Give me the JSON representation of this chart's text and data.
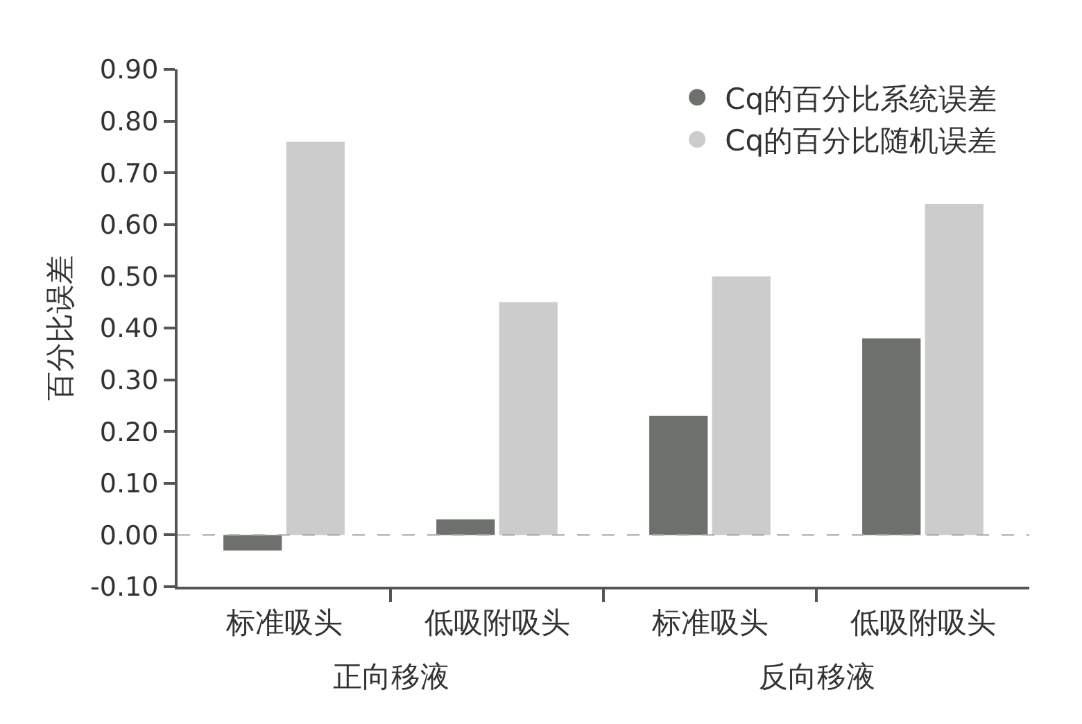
{
  "chart_data": {
    "type": "bar",
    "ylabel": "百分比误差",
    "categories": [
      "标准吸头",
      "低吸附吸头",
      "标准吸头",
      "低吸附吸头"
    ],
    "annotations": [
      "正向移液",
      "反向移液"
    ],
    "series": [
      {
        "name": "Cq的百分比系统误差",
        "color": "#6e706d",
        "values": [
          -0.03,
          0.03,
          0.23,
          0.38
        ]
      },
      {
        "name": "Cq的百分比随机误差",
        "color": "#cccccc",
        "values": [
          0.76,
          0.45,
          0.5,
          0.64
        ]
      }
    ],
    "ylim": [
      -0.1,
      0.9
    ],
    "yticks": [
      {
        "value": -0.1,
        "label": "-0.10"
      },
      {
        "value": 0,
        "label": "0.00"
      },
      {
        "value": 0.1,
        "label": "0.10"
      },
      {
        "value": 0.2,
        "label": "0.20"
      },
      {
        "value": 0.3,
        "label": "0.30"
      },
      {
        "value": 0.4,
        "label": "0.40"
      },
      {
        "value": 0.5,
        "label": "0.50"
      },
      {
        "value": 0.6,
        "label": "0.60"
      },
      {
        "value": 0.7,
        "label": "0.70"
      },
      {
        "value": 0.8,
        "label": "0.80"
      },
      {
        "value": 0.9,
        "label": "0.90"
      }
    ],
    "ref_lines": [
      {
        "axis": "y",
        "value": 0,
        "color": "#aaaaaa",
        "line_style": "dashed"
      }
    ],
    "grid": false,
    "legend": "top right"
  }
}
